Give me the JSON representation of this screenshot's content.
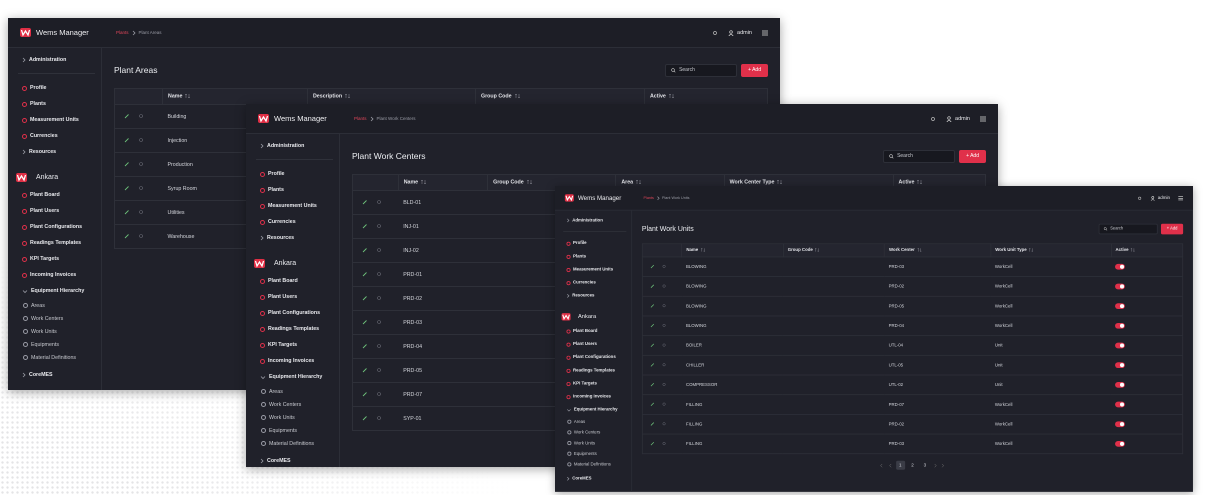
{
  "app_name": "Wems Manager",
  "user": "admin",
  "sidebar": {
    "top": "Administration",
    "admin_items": [
      "Profile",
      "Plants",
      "Measurement Units",
      "Currencies",
      "Resources"
    ],
    "plant": "Ankara",
    "plant_items": [
      "Plant Board",
      "Plant Users",
      "Plant Configurations",
      "Readings Templates",
      "KPI Targets",
      "Incoming Invoices",
      "Equipment Hierarchy"
    ],
    "equipment_items": [
      "Areas",
      "Work Centers",
      "Work Units",
      "Equipments",
      "Material Definitions"
    ],
    "bottom": "CoreMES"
  },
  "windows": [
    {
      "breadcrumb": [
        "Plants",
        "Plant Areas"
      ],
      "title": "Plant Areas",
      "search": "Search",
      "add": "+ Add",
      "columns": [
        "Name",
        "Description",
        "Group Code",
        "Active"
      ],
      "rows": [
        {
          "name": "Building"
        },
        {
          "name": "Injection"
        },
        {
          "name": "Production"
        },
        {
          "name": "Syrup Room"
        },
        {
          "name": "Utilities"
        },
        {
          "name": "Warehouse"
        }
      ]
    },
    {
      "breadcrumb": [
        "Plants",
        "Plant Work Centers"
      ],
      "title": "Plant Work Centers",
      "search": "Search",
      "add": "+ Add",
      "columns": [
        "Name",
        "Group Code",
        "Area",
        "Work Center Type",
        "Active"
      ],
      "rows": [
        {
          "name": "BLD-01"
        },
        {
          "name": "INJ-01"
        },
        {
          "name": "INJ-02"
        },
        {
          "name": "PRD-01"
        },
        {
          "name": "PRD-02"
        },
        {
          "name": "PRD-03"
        },
        {
          "name": "PRD-04"
        },
        {
          "name": "PRD-05"
        },
        {
          "name": "PRD-07"
        },
        {
          "name": "SYP-01"
        }
      ]
    },
    {
      "breadcrumb": [
        "Plants",
        "Plant Work Units"
      ],
      "title": "Plant Work Units",
      "search": "Search",
      "add": "+ Add",
      "columns": [
        "Name",
        "Group Code",
        "Work Center",
        "Work Unit Type",
        "Active"
      ],
      "rows": [
        {
          "name": "BLOWING",
          "work_center": "PRD-03",
          "type": "WorkCell",
          "active": true
        },
        {
          "name": "BLOWING",
          "work_center": "PRD-02",
          "type": "WorkCell",
          "active": true
        },
        {
          "name": "BLOWING",
          "work_center": "PRD-05",
          "type": "WorkCell",
          "active": true
        },
        {
          "name": "BLOWING",
          "work_center": "PRD-04",
          "type": "WorkCell",
          "active": true
        },
        {
          "name": "BOILER",
          "work_center": "UTL-04",
          "type": "Unit",
          "active": true
        },
        {
          "name": "CHILLER",
          "work_center": "UTL-05",
          "type": "Unit",
          "active": true
        },
        {
          "name": "COMPRESSOR",
          "work_center": "UTL-02",
          "type": "Unit",
          "active": true
        },
        {
          "name": "FILLING",
          "work_center": "PRD-07",
          "type": "WorkCell",
          "active": true
        },
        {
          "name": "FILLING",
          "work_center": "PRD-02",
          "type": "WorkCell",
          "active": true
        },
        {
          "name": "FILLING",
          "work_center": "PRD-03",
          "type": "WorkCell",
          "active": true
        }
      ],
      "pagination": [
        1,
        2,
        3
      ]
    }
  ]
}
